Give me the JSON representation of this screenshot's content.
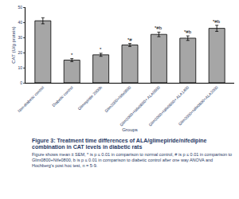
{
  "chart_data": {
    "type": "bar",
    "title": "Figure 3: Treatment time differences of ALA/glimepiride/nifedipine combination in CAT levels in diabetic rats",
    "caption": "Figure shows mean ± SEM, * is p ≤ 0.01 in comparison to normal control, # is p ≤ 0.01 in comparison to Glim0800+Nife0800, b is p ≤ 0.01 in comparison to diabetic control after one way ANOVA and Hochberg's post hoc test, n = 5-9.",
    "x_label": "Groups",
    "y_label": "CAT (U/g protein)",
    "categories": [
      "Non-diabetic control",
      "Diabetic control",
      "Glimepiride 2000h",
      "Glim2000+Nife0800",
      "Glim2000+Nife0800+ ALA0800",
      "Glim2000+Nife0800+ ALA1400",
      "Glim2000+Nife0800+ALA2000"
    ],
    "values": [
      41,
      15,
      18.5,
      25,
      32,
      29.5,
      36
    ],
    "errors": [
      2,
      1,
      1,
      1,
      1.5,
      1.5,
      2
    ],
    "significance": [
      null,
      "*",
      "*",
      "*#",
      "*#b",
      "*#b",
      "*#b"
    ],
    "color": "#a6a6a6",
    "ylim": [
      0,
      50
    ],
    "yticks": [
      0,
      10,
      20,
      30,
      40,
      50
    ],
    "grid": false
  }
}
